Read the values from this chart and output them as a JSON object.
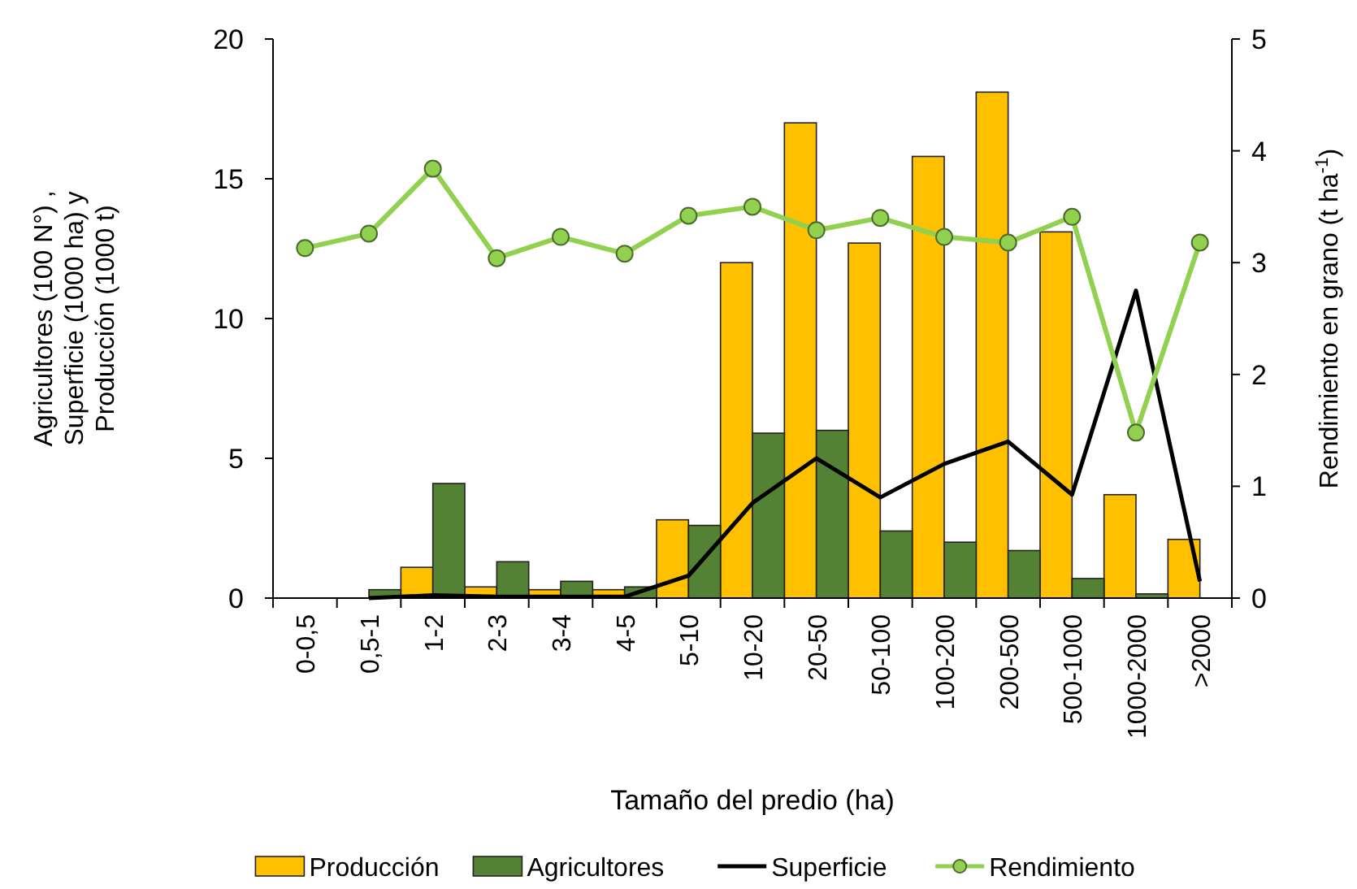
{
  "chart_data": {
    "type": "bar",
    "xlabel": "Tamaño del predio (ha)",
    "ylabel": "Agricultores (100 N°) , Superficie (1000 ha) y Producción (1000 t)",
    "y2label": "Rendimiento en grano (t ha$^{-1}$)",
    "categories": [
      "0-0,5",
      "0,5-1",
      "1-2",
      "2-3",
      "3-4",
      "4-5",
      "5-10",
      "10-20",
      "20-50",
      "50-100",
      "100-200",
      "200-500",
      "500-1000",
      "1000-2000",
      ">2000"
    ],
    "series": [
      {
        "name": "Producción",
        "color": "#ffc000",
        "values": [
          0,
          0,
          1.1,
          0.4,
          0.3,
          0.3,
          2.8,
          12,
          17,
          12.7,
          15.8,
          18.1,
          13.1,
          3.7,
          2.1
        ]
      },
      {
        "name": "Agricultores",
        "color": "#548235",
        "values": [
          0,
          0.3,
          4.1,
          1.3,
          0.6,
          0.4,
          2.6,
          5.9,
          6,
          2.4,
          2,
          1.7,
          0.7,
          0.15,
          0
        ]
      },
      {
        "name": "Superficie",
        "type": "line",
        "color": "#000000",
        "marker": "none",
        "values": [
          null,
          0,
          0.1,
          0.05,
          0.05,
          0.05,
          0.8,
          3.4,
          5,
          3.6,
          4.8,
          5.6,
          3.7,
          11,
          0.6
        ]
      },
      {
        "name": "Rendimiento",
        "type": "line",
        "axis": "y2",
        "color": "#92d050",
        "marker": "circle",
        "values": [
          3.13,
          3.26,
          3.84,
          3.04,
          3.23,
          3.08,
          3.42,
          3.5,
          3.29,
          3.4,
          3.23,
          3.18,
          3.41,
          1.48,
          3.18
        ]
      }
    ],
    "ylim": [
      0,
      20
    ],
    "yticks": [
      0,
      5,
      10,
      15,
      20
    ],
    "y2lim": [
      0,
      5
    ],
    "y2ticks": [
      0,
      1,
      2,
      3,
      4,
      5
    ],
    "legend": "bottom",
    "grid": false
  }
}
